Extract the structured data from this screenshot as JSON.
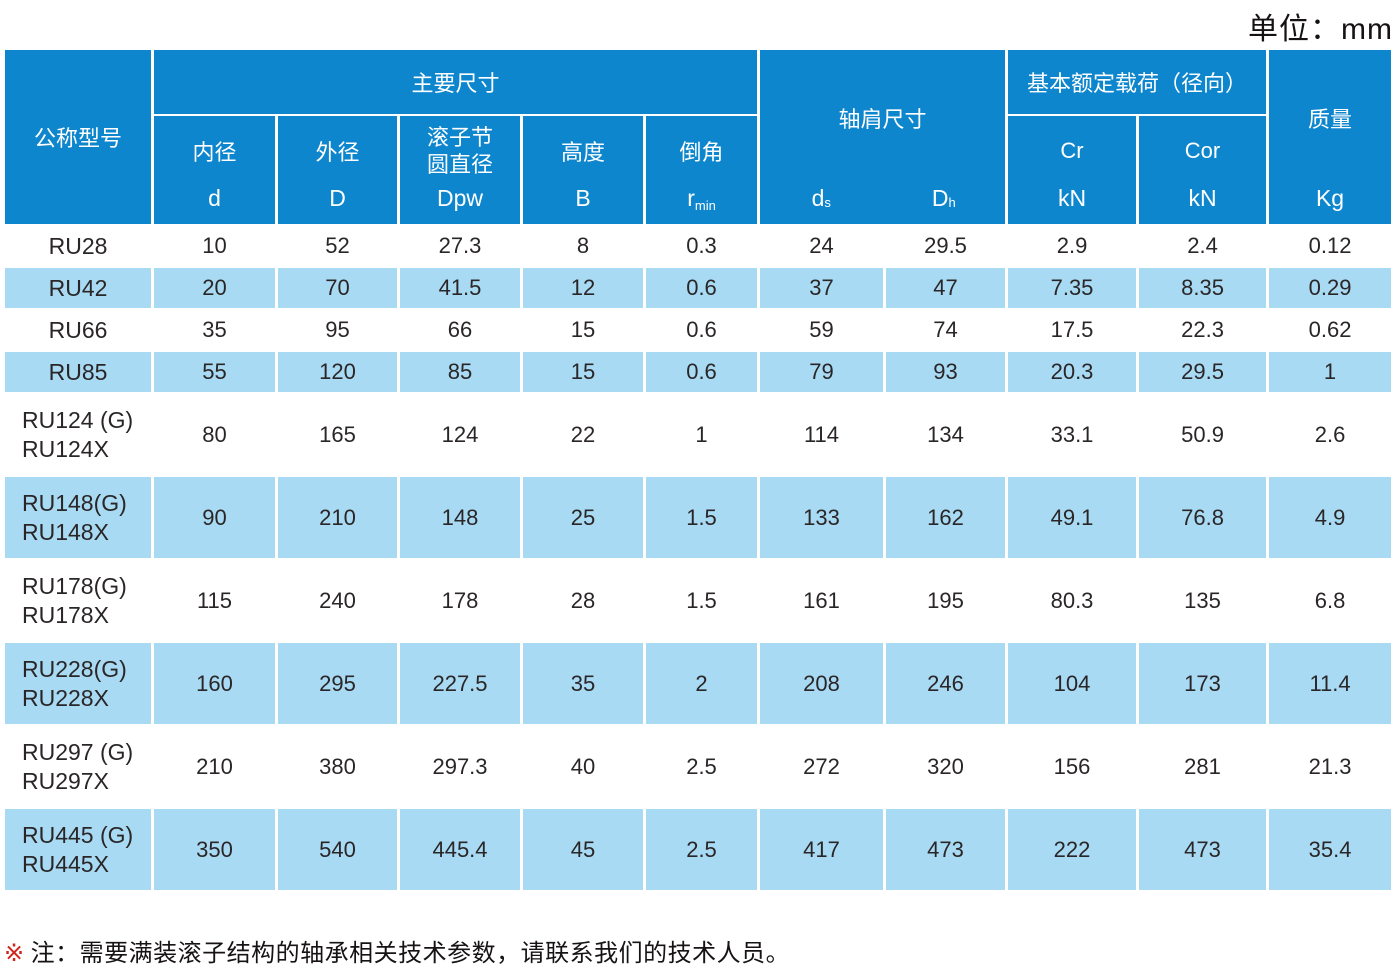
{
  "unit_label": "单位：mm",
  "header": {
    "model_col": "公称型号",
    "main_dims_group": "主要尺寸",
    "shoulder_group": "轴肩尺寸",
    "load_group": "基本额定载荷（径向）",
    "mass_group": "质量",
    "mass_unit": "Kg",
    "sub_cols": [
      {
        "label": "内径",
        "symbol": "d",
        "sub": ""
      },
      {
        "label": "外径",
        "symbol": "D",
        "sub": ""
      },
      {
        "label": "滚子节圆直径",
        "symbol": "Dpw",
        "sub": ""
      },
      {
        "label": "高度",
        "symbol": "B",
        "sub": ""
      },
      {
        "label": "倒角",
        "symbol": "r",
        "sub": "min"
      }
    ],
    "shoulder_cols": [
      {
        "symbol": "d",
        "sub": "s"
      },
      {
        "symbol": "D",
        "sub": "h"
      }
    ],
    "load_cols": [
      {
        "label": "Cr",
        "unit": "kN"
      },
      {
        "label": "Cor",
        "unit": "kN"
      }
    ]
  },
  "rows": [
    {
      "model": [
        "RU28"
      ],
      "shaded": false,
      "values": [
        "10",
        "52",
        "27.3",
        "8",
        "0.3",
        "24",
        "29.5",
        "2.9",
        "2.4",
        "0.12"
      ]
    },
    {
      "model": [
        "RU42"
      ],
      "shaded": true,
      "values": [
        "20",
        "70",
        "41.5",
        "12",
        "0.6",
        "37",
        "47",
        "7.35",
        "8.35",
        "0.29"
      ]
    },
    {
      "model": [
        "RU66"
      ],
      "shaded": false,
      "values": [
        "35",
        "95",
        "66",
        "15",
        "0.6",
        "59",
        "74",
        "17.5",
        "22.3",
        "0.62"
      ]
    },
    {
      "model": [
        "RU85"
      ],
      "shaded": true,
      "values": [
        "55",
        "120",
        "85",
        "15",
        "0.6",
        "79",
        "93",
        "20.3",
        "29.5",
        "1"
      ]
    },
    {
      "model": [
        "RU124 (G)",
        "RU124X"
      ],
      "shaded": false,
      "values": [
        "80",
        "165",
        "124",
        "22",
        "1",
        "114",
        "134",
        "33.1",
        "50.9",
        "2.6"
      ]
    },
    {
      "model": [
        "RU148(G)",
        "RU148X"
      ],
      "shaded": true,
      "values": [
        "90",
        "210",
        "148",
        "25",
        "1.5",
        "133",
        "162",
        "49.1",
        "76.8",
        "4.9"
      ]
    },
    {
      "model": [
        "RU178(G)",
        "RU178X"
      ],
      "shaded": false,
      "values": [
        "115",
        "240",
        "178",
        "28",
        "1.5",
        "161",
        "195",
        "80.3",
        "135",
        "6.8"
      ]
    },
    {
      "model": [
        "RU228(G)",
        "RU228X"
      ],
      "shaded": true,
      "values": [
        "160",
        "295",
        "227.5",
        "35",
        "2",
        "208",
        "246",
        "104",
        "173",
        "11.4"
      ]
    },
    {
      "model": [
        "RU297 (G)",
        "RU297X"
      ],
      "shaded": false,
      "values": [
        "210",
        "380",
        "297.3",
        "40",
        "2.5",
        "272",
        "320",
        "156",
        "281",
        "21.3"
      ]
    },
    {
      "model": [
        "RU445 (G)",
        "RU445X"
      ],
      "shaded": true,
      "values": [
        "350",
        "540",
        "445.4",
        "45",
        "2.5",
        "417",
        "473",
        "222",
        "473",
        "35.4"
      ]
    }
  ],
  "note": {
    "marker": "※",
    "text": "注：需要满装滚子结构的轴承相关技术参数，请联系我们的技术人员。"
  },
  "colors": {
    "header_blue": "#0e86cd",
    "row_blue": "#a8daf3",
    "text_dark": "#2a2627",
    "note_red": "#d0231b"
  }
}
